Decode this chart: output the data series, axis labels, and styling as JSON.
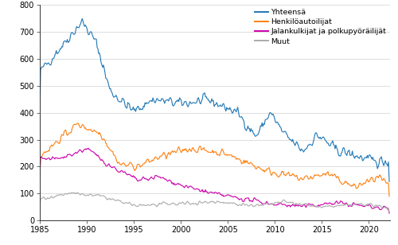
{
  "title": "",
  "ylabel": "",
  "xlabel": "",
  "xlim": [
    1985.0,
    2022.25
  ],
  "ylim": [
    0,
    800
  ],
  "yticks": [
    0,
    100,
    200,
    300,
    400,
    500,
    600,
    700,
    800
  ],
  "xticks": [
    1985,
    1990,
    1995,
    2000,
    2005,
    2010,
    2015,
    2020
  ],
  "legend_labels": [
    "Yhteensä",
    "Henkilöautoilijat",
    "Jalankulkijat ja polkupyöräilijät",
    "Muut"
  ],
  "colors": [
    "#1f77b4",
    "#ff7f0e",
    "#cc00aa",
    "#aaaaaa"
  ],
  "line_width": 0.8,
  "background_color": "#ffffff",
  "grid_color": "#d0d0d0"
}
